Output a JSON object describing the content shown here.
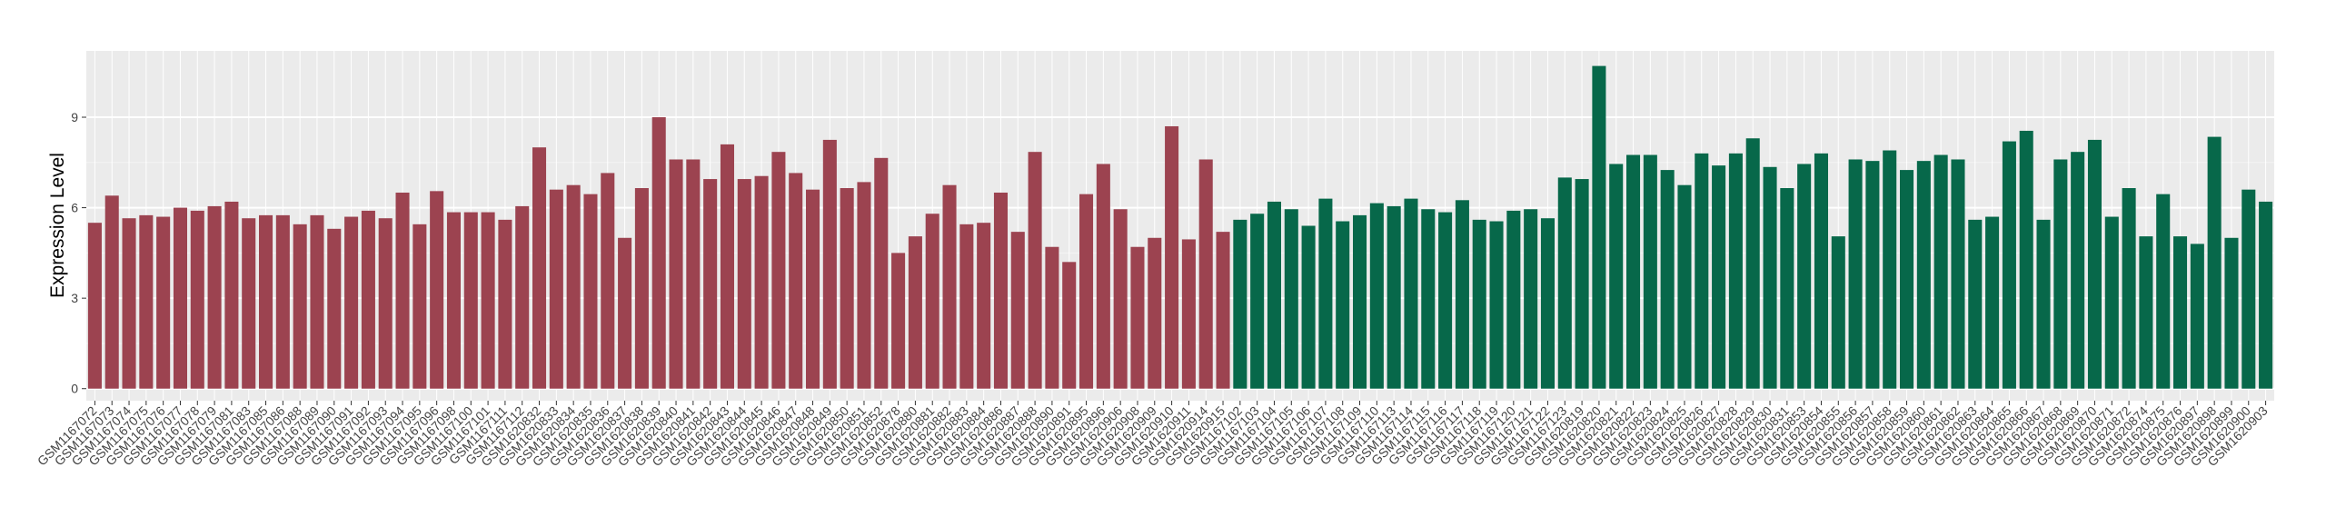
{
  "chart_data": {
    "type": "bar",
    "ylabel": "Expression Level",
    "categories": [
      "GSM1167072",
      "GSM1167073",
      "GSM1167074",
      "GSM1167075",
      "GSM1167076",
      "GSM1167077",
      "GSM1167078",
      "GSM1167079",
      "GSM1167081",
      "GSM1167083",
      "GSM1167085",
      "GSM1167086",
      "GSM1167088",
      "GSM1167089",
      "GSM1167090",
      "GSM1167091",
      "GSM1167092",
      "GSM1167093",
      "GSM1167094",
      "GSM1167095",
      "GSM1167096",
      "GSM1167098",
      "GSM1167100",
      "GSM1167101",
      "GSM1167111",
      "GSM1167112",
      "GSM1620832",
      "GSM1620833",
      "GSM1620834",
      "GSM1620835",
      "GSM1620836",
      "GSM1620837",
      "GSM1620838",
      "GSM1620839",
      "GSM1620840",
      "GSM1620841",
      "GSM1620842",
      "GSM1620843",
      "GSM1620844",
      "GSM1620845",
      "GSM1620846",
      "GSM1620847",
      "GSM1620848",
      "GSM1620849",
      "GSM1620850",
      "GSM1620851",
      "GSM1620852",
      "GSM1620878",
      "GSM1620880",
      "GSM1620881",
      "GSM1620882",
      "GSM1620883",
      "GSM1620884",
      "GSM1620886",
      "GSM1620887",
      "GSM1620888",
      "GSM1620890",
      "GSM1620891",
      "GSM1620895",
      "GSM1620896",
      "GSM1620906",
      "GSM1620908",
      "GSM1620909",
      "GSM1620910",
      "GSM1620911",
      "GSM1620914",
      "GSM1620915",
      "GSM1167102",
      "GSM1167103",
      "GSM1167104",
      "GSM1167105",
      "GSM1167106",
      "GSM1167107",
      "GSM1167108",
      "GSM1167109",
      "GSM1167110",
      "GSM1167113",
      "GSM1167114",
      "GSM1167115",
      "GSM1167116",
      "GSM1167117",
      "GSM1167118",
      "GSM1167119",
      "GSM1167120",
      "GSM1167121",
      "GSM1167122",
      "GSM1167123",
      "GSM1620819",
      "GSM1620820",
      "GSM1620821",
      "GSM1620822",
      "GSM1620823",
      "GSM1620824",
      "GSM1620825",
      "GSM1620826",
      "GSM1620827",
      "GSM1620828",
      "GSM1620829",
      "GSM1620830",
      "GSM1620831",
      "GSM1620853",
      "GSM1620854",
      "GSM1620855",
      "GSM1620856",
      "GSM1620857",
      "GSM1620858",
      "GSM1620859",
      "GSM1620860",
      "GSM1620861",
      "GSM1620862",
      "GSM1620863",
      "GSM1620864",
      "GSM1620865",
      "GSM1620866",
      "GSM1620867",
      "GSM1620868",
      "GSM1620869",
      "GSM1620870",
      "GSM1620871",
      "GSM1620872",
      "GSM1620874",
      "GSM1620875",
      "GSM1620876",
      "GSM1620897",
      "GSM1620898",
      "GSM1620899",
      "GSM1620900",
      "GSM1620903"
    ],
    "values": [
      5.5,
      6.4,
      5.65,
      5.75,
      5.7,
      6.0,
      5.9,
      6.05,
      6.2,
      5.65,
      5.75,
      5.75,
      5.45,
      5.75,
      5.3,
      5.7,
      5.9,
      5.65,
      6.5,
      5.45,
      6.55,
      5.85,
      5.85,
      5.85,
      5.6,
      6.05,
      8.0,
      6.6,
      6.75,
      6.45,
      7.15,
      5.0,
      6.65,
      9.0,
      7.6,
      7.6,
      6.95,
      8.1,
      6.95,
      7.05,
      7.85,
      7.15,
      6.6,
      8.25,
      6.65,
      6.85,
      7.65,
      4.5,
      5.05,
      5.8,
      6.75,
      5.45,
      5.5,
      6.5,
      5.2,
      7.85,
      4.7,
      4.2,
      6.45,
      7.45,
      5.95,
      4.7,
      5.0,
      8.7,
      4.95,
      7.6,
      5.2,
      5.6,
      5.8,
      6.2,
      5.95,
      5.4,
      6.3,
      5.55,
      5.75,
      6.15,
      6.05,
      6.3,
      5.95,
      5.85,
      6.25,
      5.6,
      5.55,
      5.9,
      5.95,
      5.65,
      7.0,
      6.95,
      10.7,
      7.45,
      7.75,
      7.75,
      7.25,
      6.75,
      7.8,
      7.4,
      7.8,
      8.3,
      7.35,
      6.65,
      7.45,
      7.8,
      5.05,
      7.6,
      7.55,
      7.9,
      7.25,
      7.55,
      7.75,
      7.6,
      5.6,
      5.7,
      8.2,
      8.55,
      5.6,
      7.6,
      7.85,
      8.25,
      5.7,
      6.65,
      5.05,
      6.45,
      5.05,
      4.8,
      8.35,
      5.0,
      6.6,
      6.2
    ],
    "colors": [
      "#9c4350",
      "#9c4350",
      "#9c4350",
      "#9c4350",
      "#9c4350",
      "#9c4350",
      "#9c4350",
      "#9c4350",
      "#9c4350",
      "#9c4350",
      "#9c4350",
      "#9c4350",
      "#9c4350",
      "#9c4350",
      "#9c4350",
      "#9c4350",
      "#9c4350",
      "#9c4350",
      "#9c4350",
      "#9c4350",
      "#9c4350",
      "#9c4350",
      "#9c4350",
      "#9c4350",
      "#9c4350",
      "#9c4350",
      "#9c4350",
      "#9c4350",
      "#9c4350",
      "#9c4350",
      "#9c4350",
      "#9c4350",
      "#9c4350",
      "#9c4350",
      "#9c4350",
      "#9c4350",
      "#9c4350",
      "#9c4350",
      "#9c4350",
      "#9c4350",
      "#9c4350",
      "#9c4350",
      "#9c4350",
      "#9c4350",
      "#9c4350",
      "#9c4350",
      "#9c4350",
      "#9c4350",
      "#9c4350",
      "#9c4350",
      "#9c4350",
      "#9c4350",
      "#9c4350",
      "#9c4350",
      "#9c4350",
      "#9c4350",
      "#9c4350",
      "#9c4350",
      "#9c4350",
      "#9c4350",
      "#9c4350",
      "#9c4350",
      "#9c4350",
      "#9c4350",
      "#9c4350",
      "#9c4350",
      "#9c4350",
      "#07684a",
      "#07684a",
      "#07684a",
      "#07684a",
      "#07684a",
      "#07684a",
      "#07684a",
      "#07684a",
      "#07684a",
      "#07684a",
      "#07684a",
      "#07684a",
      "#07684a",
      "#07684a",
      "#07684a",
      "#07684a",
      "#07684a",
      "#07684a",
      "#07684a",
      "#07684a",
      "#07684a",
      "#07684a",
      "#07684a",
      "#07684a",
      "#07684a",
      "#07684a",
      "#07684a",
      "#07684a",
      "#07684a",
      "#07684a",
      "#07684a",
      "#07684a",
      "#07684a",
      "#07684a",
      "#07684a",
      "#07684a",
      "#07684a",
      "#07684a",
      "#07684a",
      "#07684a",
      "#07684a",
      "#07684a",
      "#07684a",
      "#07684a",
      "#07684a",
      "#07684a",
      "#07684a",
      "#07684a",
      "#07684a",
      "#07684a",
      "#07684a",
      "#07684a",
      "#07684a",
      "#07684a",
      "#07684a",
      "#07684a",
      "#07684a",
      "#07684a",
      "#07684a",
      "#07684a",
      "#07684a"
    ],
    "ylim": [
      -0.4,
      11.2
    ],
    "yticks": [
      0,
      3,
      6,
      9
    ],
    "grid": true
  }
}
